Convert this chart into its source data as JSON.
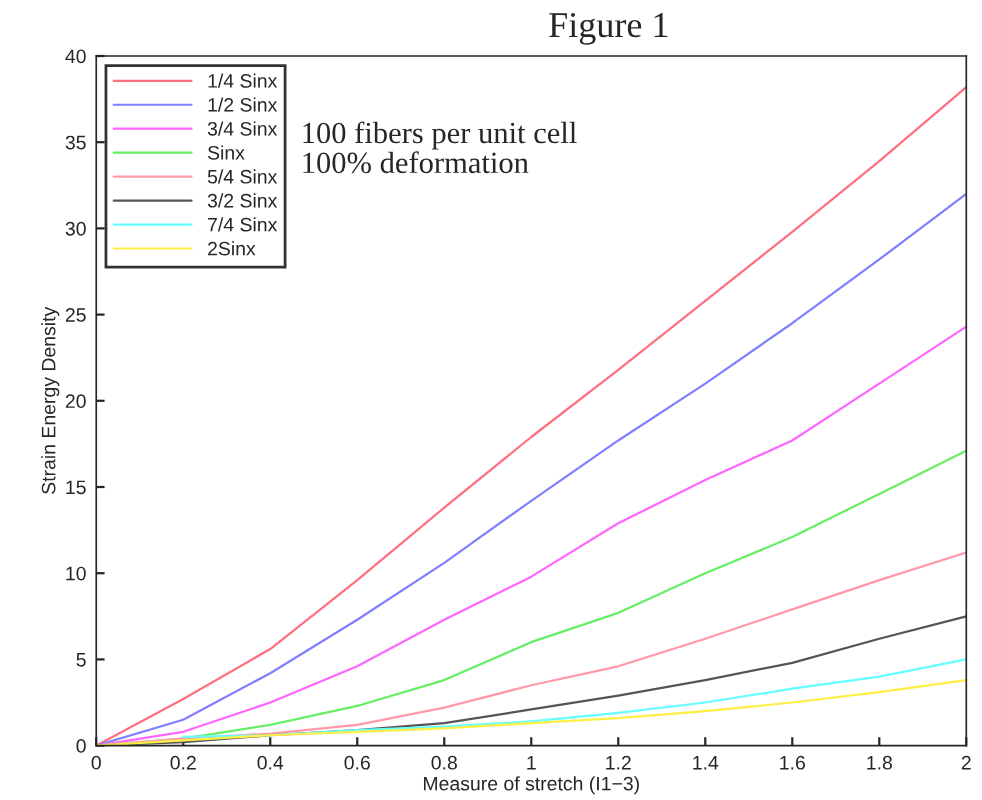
{
  "chart_data": {
    "type": "line",
    "title": "Figure 1",
    "subtitle": "100 fibers per unit cell\n100% deformation",
    "xlabel": "Measure of stretch (I1−3)",
    "ylabel": "Strain Energy Density",
    "x": [
      0,
      0.2,
      0.4,
      0.6,
      0.8,
      1,
      1.2,
      1.4,
      1.6,
      1.8,
      2
    ],
    "series": [
      {
        "name": "1/4 Sinx",
        "color": "#ff6f80",
        "values": [
          0,
          2.7,
          5.6,
          9.6,
          13.8,
          17.9,
          21.8,
          25.8,
          29.8,
          33.9,
          38.2
        ]
      },
      {
        "name": "1/2 Sinx",
        "color": "#7f7fff",
        "values": [
          0,
          1.5,
          4.2,
          7.3,
          10.6,
          14.2,
          17.7,
          21,
          24.5,
          28.2,
          32
        ]
      },
      {
        "name": "3/4 Sinx",
        "color": "#ff66ff",
        "values": [
          0,
          0.8,
          2.5,
          4.6,
          7.3,
          9.8,
          12.9,
          15.4,
          17.7,
          21,
          24.3
        ]
      },
      {
        "name": "Sinx",
        "color": "#66ee66",
        "values": [
          0,
          0.4,
          1.2,
          2.3,
          3.8,
          6.0,
          7.7,
          10,
          12.1,
          14.6,
          17.1
        ]
      },
      {
        "name": "5/4 Sinx",
        "color": "#ff99aa",
        "values": [
          0,
          0.4,
          0.7,
          1.2,
          2.2,
          3.5,
          4.6,
          6.2,
          7.9,
          9.6,
          11.2
        ]
      },
      {
        "name": "3/2 Sinx",
        "color": "#555555",
        "values": [
          0,
          0.2,
          0.6,
          0.9,
          1.3,
          2.1,
          2.9,
          3.8,
          4.8,
          6.2,
          7.5
        ]
      },
      {
        "name": "7/4 Sinx",
        "color": "#66ffff",
        "values": [
          null,
          0.5,
          0.6,
          0.9,
          1.1,
          1.4,
          1.9,
          2.5,
          3.3,
          4.0,
          5.0
        ]
      },
      {
        "name": "2Sinx",
        "color": "#ffee44",
        "values": [
          0,
          0.3,
          0.6,
          0.8,
          1.0,
          1.3,
          1.6,
          2.0,
          2.5,
          3.1,
          3.8
        ]
      }
    ],
    "xlim": [
      0,
      2
    ],
    "xticks": [
      0,
      0.2,
      0.4,
      0.6,
      0.8,
      1,
      1.2,
      1.4,
      1.6,
      1.8,
      2
    ],
    "ylim": [
      0,
      40
    ],
    "yticks": [
      0,
      5,
      10,
      15,
      20,
      25,
      30,
      35,
      40
    ],
    "grid": false,
    "legend": "top left"
  }
}
